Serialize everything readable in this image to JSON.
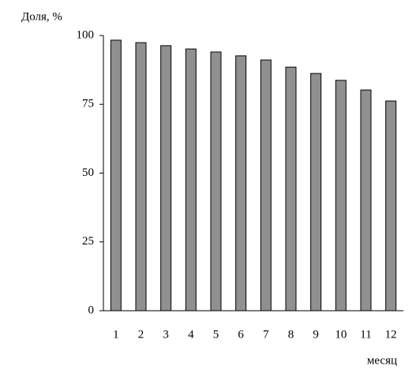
{
  "chart_data": {
    "type": "bar",
    "y_label": "Доля, %",
    "x_label": "месяц",
    "categories": [
      "1",
      "2",
      "3",
      "4",
      "5",
      "6",
      "7",
      "8",
      "9",
      "10",
      "11",
      "12"
    ],
    "values": [
      98.3,
      97.4,
      96.3,
      95.1,
      94.0,
      92.6,
      91.1,
      88.5,
      86.2,
      83.7,
      80.2,
      76.2
    ],
    "color": "#909090",
    "ylim": [
      0,
      100
    ],
    "yticks": [
      0,
      25,
      50,
      75,
      100
    ],
    "grid": false
  }
}
